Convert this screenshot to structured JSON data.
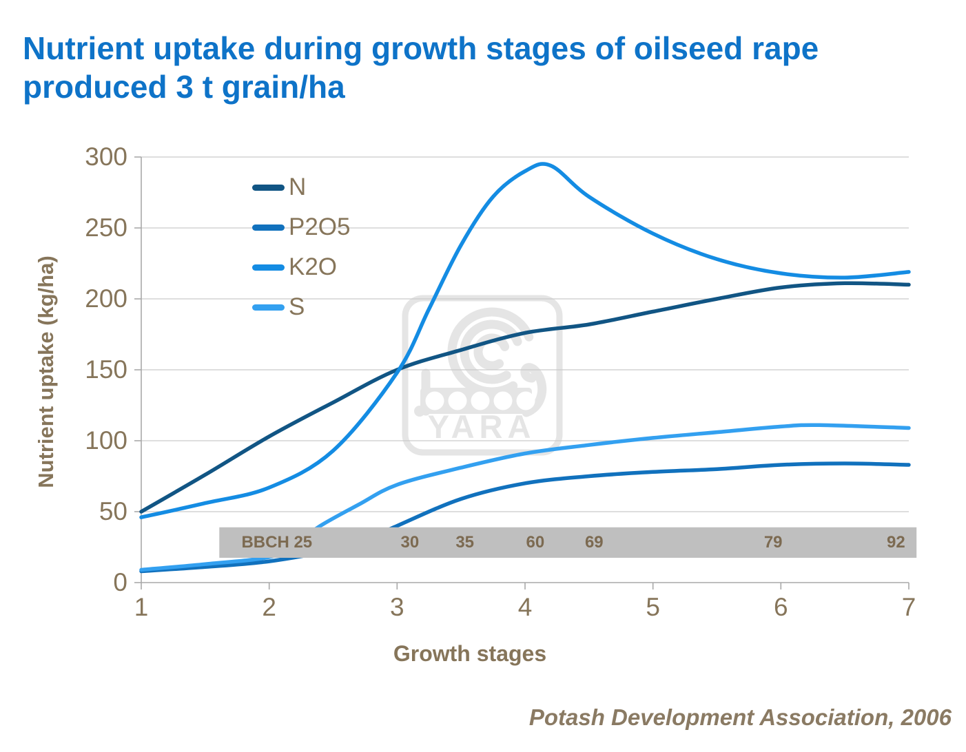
{
  "title": {
    "line1": "Nutrient uptake during growth stages of oilseed rape",
    "line2": "produced 3 t grain/ha"
  },
  "footer": {
    "source": "Potash Development Association, 2006"
  },
  "watermark": {
    "brand": "YARA"
  },
  "colors": {
    "title": "#0e73c8",
    "axis_text": "#86755a",
    "axis_line": "#a8a8a8",
    "gridline": "#c9c9c9",
    "bbch_bar": "#bfbfbf",
    "bbch_text": "#7c6a51",
    "watermark": "#e5e5e5"
  },
  "chart_data": {
    "type": "line",
    "title": "Nutrient uptake during growth stages of oilseed rape produced 3 t grain/ha",
    "xlabel": "Growth stages",
    "ylabel": "Nutrient uptake (kg/ha)",
    "xlim": [
      1,
      7
    ],
    "ylim": [
      0,
      300
    ],
    "x_ticks": [
      "1",
      "2",
      "3",
      "4",
      "5",
      "6",
      "7"
    ],
    "y_ticks": [
      "0",
      "50",
      "100",
      "150",
      "200",
      "250",
      "300"
    ],
    "grid": "horizontal-only",
    "legend_position": "top-left-inside",
    "series": [
      {
        "name": "N",
        "color": "#115584",
        "x": [
          1,
          1.5,
          2,
          2.5,
          3,
          3.5,
          4,
          4.5,
          5,
          5.5,
          6,
          6.5,
          7
        ],
        "values": [
          50,
          76,
          103,
          127,
          150,
          164,
          176,
          182,
          191,
          200,
          208,
          211,
          210
        ]
      },
      {
        "name": "P2O5",
        "color": "#1171bd",
        "x": [
          1,
          1.5,
          2,
          2.5,
          2.75,
          3,
          3.5,
          4,
          4.5,
          5,
          5.5,
          6,
          6.5,
          7
        ],
        "values": [
          8,
          11,
          15,
          23,
          30,
          40,
          59,
          70,
          75,
          78,
          80,
          83,
          84,
          83
        ]
      },
      {
        "name": "K2O",
        "color": "#148ce3",
        "x": [
          1,
          1.5,
          2,
          2.5,
          3,
          3.25,
          3.5,
          3.75,
          4,
          4.2,
          4.5,
          5,
          5.5,
          6,
          6.5,
          7
        ],
        "values": [
          46,
          56,
          67,
          93,
          148,
          193,
          238,
          272,
          290,
          294,
          272,
          246,
          228,
          218,
          215,
          219
        ]
      },
      {
        "name": "S",
        "color": "#33a0f0",
        "x": [
          1,
          1.5,
          2,
          2.2,
          2.4,
          2.7,
          3,
          3.5,
          4,
          4.5,
          5,
          5.5,
          6,
          6.3,
          7
        ],
        "values": [
          9,
          13,
          18,
          27,
          40,
          55,
          69,
          81,
          91,
          97,
          102,
          106,
          110,
          111,
          109
        ]
      }
    ],
    "bbch_bar": {
      "label_meaning": "BBCH growth stage codes",
      "stage_start": 1.61,
      "stage_end": 7.06,
      "value_top": 39,
      "value_bottom": 17.5,
      "items": [
        {
          "text": "BBCH 25",
          "stage": 2.06
        },
        {
          "text": "30",
          "stage": 3.1
        },
        {
          "text": "35",
          "stage": 3.53
        },
        {
          "text": "60",
          "stage": 4.08
        },
        {
          "text": "69",
          "stage": 4.54
        },
        {
          "text": "79",
          "stage": 5.94
        },
        {
          "text": "92",
          "stage": 6.9
        }
      ]
    }
  }
}
